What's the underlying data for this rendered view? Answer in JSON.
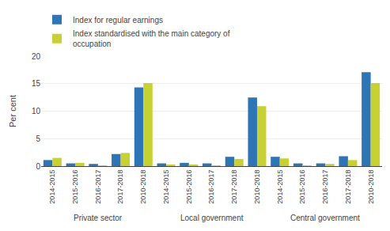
{
  "chart_data": {
    "type": "bar",
    "categories": [
      [
        "Private sector",
        "2014-2015"
      ],
      [
        "Private sector",
        "2015-2016"
      ],
      [
        "Private sector",
        "2016-2017"
      ],
      [
        "Private sector",
        "2017-2018"
      ],
      [
        "Private sector",
        "2010-2018"
      ],
      [
        "Local government",
        "2014-2015"
      ],
      [
        "Local government",
        "2015-2016"
      ],
      [
        "Local government",
        "2016-2017"
      ],
      [
        "Local government",
        "2017-2018"
      ],
      [
        "Local government",
        "2010-2018"
      ],
      [
        "Central government",
        "2014-2015"
      ],
      [
        "Central government",
        "2015-2016"
      ],
      [
        "Central government",
        "2016-2017"
      ],
      [
        "Central government",
        "2017-2018"
      ],
      [
        "Central government",
        "2010-2018"
      ]
    ],
    "series": [
      {
        "name": "Index for regular earnings",
        "color": "#2e75b6",
        "values": [
          1.1,
          0.5,
          0.4,
          2.2,
          14.3,
          0.5,
          0.6,
          0.5,
          1.7,
          12.5,
          1.7,
          0.5,
          0.5,
          1.8,
          17.1
        ]
      },
      {
        "name": "Index standardised with the main category of\noccupation",
        "color": "#c7d133",
        "values": [
          1.5,
          0.6,
          0.1,
          2.4,
          15.1,
          0.3,
          0.2,
          0.1,
          1.3,
          10.9,
          1.4,
          0.1,
          0.4,
          1.1,
          15.1
        ]
      }
    ],
    "ylabel": "Per cent",
    "ylim": [
      0,
      20
    ],
    "yticks": [
      0,
      5,
      10,
      15,
      20
    ],
    "grid": true,
    "legend": "upper left"
  }
}
